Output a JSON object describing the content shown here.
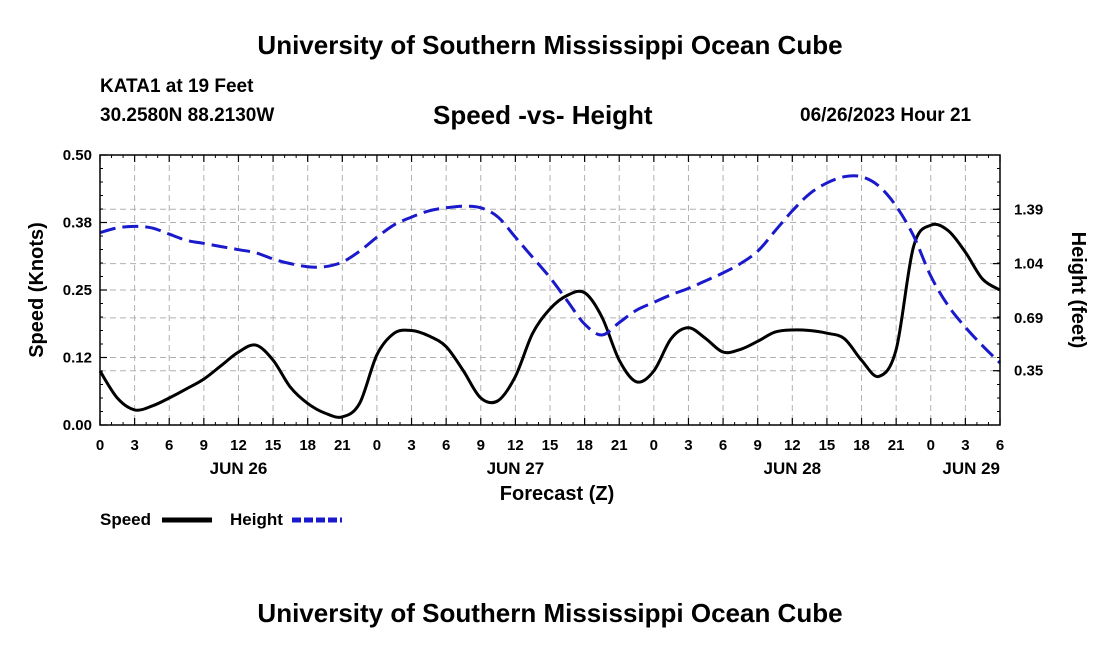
{
  "header": {
    "title": "University of Southern Mississippi Ocean Cube",
    "station": "KATA1 at 19 Feet",
    "coords": "30.2580N  88.2130W",
    "subtitle": "Speed -vs- Height",
    "datetime": "06/26/2023 Hour 21"
  },
  "footer": {
    "title": "University of Southern Mississippi Ocean Cube"
  },
  "colors": {
    "speed": "#000000",
    "height": "#1a1acc",
    "grid": "#b0b0b0"
  },
  "chart_data": {
    "type": "line",
    "title": "Speed -vs- Height",
    "xlabel": "Forecast (Z)",
    "ylabel": "Speed (Knots)",
    "y2label": "Height (feet)",
    "xlim": [
      0,
      78
    ],
    "ylim": [
      0,
      0.5
    ],
    "y2lim": [
      0,
      1.74
    ],
    "x_ticks": [
      0,
      3,
      6,
      9,
      12,
      15,
      18,
      21,
      24,
      27,
      30,
      33,
      36,
      39,
      42,
      45,
      48,
      51,
      54,
      57,
      60,
      63,
      66,
      69,
      72,
      75,
      78
    ],
    "x_tick_labels": [
      "0",
      "3",
      "6",
      "9",
      "12",
      "15",
      "18",
      "21",
      "0",
      "3",
      "6",
      "9",
      "12",
      "15",
      "18",
      "21",
      "0",
      "3",
      "6",
      "9",
      "12",
      "15",
      "18",
      "21",
      "0",
      "3",
      "6"
    ],
    "y_ticks": [
      0,
      0.125,
      0.25,
      0.375,
      0.5
    ],
    "y_tick_labels": [
      "0.00",
      "0.12",
      "0.25",
      "0.38",
      "0.50"
    ],
    "y2_ticks": [
      0.35,
      0.69,
      1.04,
      1.39
    ],
    "y2_tick_labels": [
      "0.35",
      "0.69",
      "1.04",
      "1.39"
    ],
    "day_labels": [
      {
        "x": 12,
        "label": "JUN 26"
      },
      {
        "x": 36,
        "label": "JUN 27"
      },
      {
        "x": 60,
        "label": "JUN 28"
      },
      {
        "x": 78,
        "label": "JUN 29"
      }
    ],
    "grid": true,
    "legend": "bottom-left",
    "series": [
      {
        "name": "Speed",
        "axis": "left",
        "style": "solid",
        "x": [
          0,
          1.5,
          3,
          4.5,
          6,
          7.5,
          9,
          10.5,
          12,
          13.5,
          15,
          16.5,
          18,
          19.5,
          21,
          22.5,
          24,
          25.5,
          27,
          28.5,
          30,
          31.5,
          33,
          34.5,
          36,
          37.5,
          39,
          40.5,
          42,
          43.5,
          45,
          46.5,
          48,
          49.5,
          51,
          52.5,
          54,
          55.5,
          57,
          58.5,
          60,
          61.5,
          63,
          64.5,
          66,
          67.5,
          69,
          70.5,
          72,
          73.5,
          75,
          76.5,
          78
        ],
        "values": [
          0.1,
          0.05,
          0.028,
          0.035,
          0.05,
          0.067,
          0.085,
          0.11,
          0.135,
          0.148,
          0.12,
          0.07,
          0.04,
          0.022,
          0.015,
          0.04,
          0.13,
          0.17,
          0.175,
          0.165,
          0.145,
          0.1,
          0.05,
          0.045,
          0.09,
          0.17,
          0.215,
          0.24,
          0.245,
          0.2,
          0.12,
          0.08,
          0.1,
          0.16,
          0.18,
          0.16,
          0.135,
          0.14,
          0.155,
          0.172,
          0.176,
          0.175,
          0.17,
          0.16,
          0.12,
          0.09,
          0.14,
          0.33,
          0.37,
          0.36,
          0.32,
          0.27,
          0.25
        ]
      },
      {
        "name": "Height",
        "axis": "right",
        "style": "dashed",
        "x": [
          0,
          1.5,
          3,
          4.5,
          6,
          7.5,
          9,
          10.5,
          12,
          13.5,
          15,
          16.5,
          18,
          19.5,
          21,
          22.5,
          24,
          25.5,
          27,
          28.5,
          30,
          31.5,
          33,
          34.5,
          36,
          37.5,
          39,
          40.5,
          42,
          43.5,
          45,
          46.5,
          48,
          49.5,
          51,
          52.5,
          54,
          55.5,
          57,
          58.5,
          60,
          61.5,
          63,
          64.5,
          66,
          67.5,
          69,
          70.5,
          72,
          73.5,
          75,
          76.5,
          78
        ],
        "values": [
          1.24,
          1.27,
          1.28,
          1.27,
          1.23,
          1.19,
          1.17,
          1.15,
          1.13,
          1.11,
          1.07,
          1.04,
          1.02,
          1.02,
          1.05,
          1.12,
          1.21,
          1.29,
          1.34,
          1.38,
          1.4,
          1.41,
          1.4,
          1.34,
          1.21,
          1.08,
          0.95,
          0.8,
          0.65,
          0.58,
          0.66,
          0.74,
          0.79,
          0.84,
          0.88,
          0.93,
          0.98,
          1.04,
          1.12,
          1.25,
          1.38,
          1.49,
          1.56,
          1.6,
          1.6,
          1.54,
          1.41,
          1.22,
          0.96,
          0.77,
          0.63,
          0.51,
          0.4
        ]
      }
    ]
  }
}
